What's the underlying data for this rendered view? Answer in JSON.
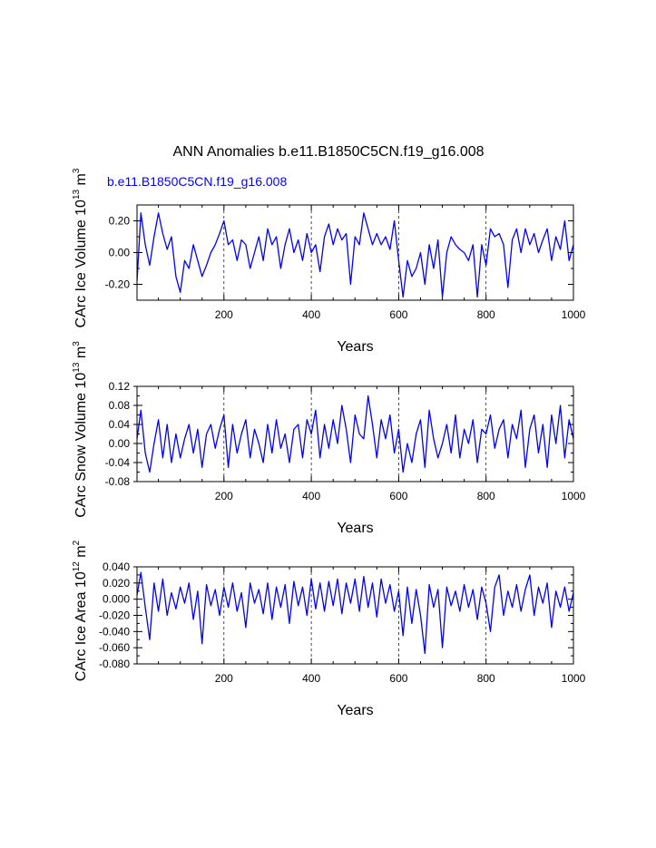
{
  "figure": {
    "title": "ANN Anomalies b.e11.B1850C5CN.f19_g16.008",
    "case_label": "b.e11.B1850C5CN.f19_g16.008",
    "line_color": "#0000ff",
    "grid_color": "#000000"
  },
  "chart_data": [
    {
      "type": "line",
      "name": "ice-volume",
      "ylabel": {
        "main": "CArc Ice Volume 10",
        "exp": "13",
        "unit": " m",
        "unit_exp": "3"
      },
      "xlabel": "Years",
      "xlim": [
        1,
        1000
      ],
      "ylim": [
        -0.3,
        0.3
      ],
      "xticks": [
        200,
        400,
        600,
        800,
        1000
      ],
      "xtick_labels": [
        "200",
        "400",
        "600",
        "800",
        "1000"
      ],
      "yticks": [
        -0.2,
        0.0,
        0.2
      ],
      "ytick_labels": [
        "-0.20",
        "0.00",
        "0.20"
      ],
      "grid_x": [
        200,
        400,
        600,
        800
      ],
      "series": [
        {
          "name": "b.e11.B1850C5CN.f19_g16.008",
          "x": [
            1,
            10,
            20,
            30,
            40,
            50,
            60,
            70,
            80,
            90,
            100,
            110,
            120,
            130,
            140,
            150,
            160,
            170,
            180,
            190,
            200,
            210,
            220,
            230,
            240,
            250,
            260,
            270,
            280,
            290,
            300,
            310,
            320,
            330,
            340,
            350,
            360,
            370,
            380,
            390,
            400,
            410,
            420,
            430,
            440,
            450,
            460,
            470,
            480,
            490,
            500,
            510,
            520,
            530,
            540,
            550,
            560,
            570,
            580,
            590,
            600,
            610,
            620,
            630,
            640,
            650,
            660,
            670,
            680,
            690,
            700,
            710,
            720,
            730,
            740,
            750,
            760,
            770,
            780,
            790,
            800,
            810,
            820,
            830,
            840,
            850,
            860,
            870,
            880,
            890,
            900,
            910,
            920,
            930,
            940,
            950,
            960,
            970,
            980,
            990,
            1000
          ],
          "y": [
            -0.18,
            0.25,
            0.05,
            -0.08,
            0.1,
            0.25,
            0.12,
            0.02,
            0.1,
            -0.15,
            -0.25,
            -0.05,
            -0.1,
            0.05,
            -0.05,
            -0.15,
            -0.08,
            0.0,
            0.05,
            0.12,
            0.2,
            0.05,
            0.08,
            -0.05,
            0.08,
            0.05,
            -0.1,
            0.0,
            0.1,
            -0.05,
            0.15,
            0.05,
            0.1,
            -0.1,
            0.05,
            0.15,
            0.0,
            0.08,
            -0.05,
            0.12,
            0.0,
            0.05,
            -0.12,
            0.1,
            0.18,
            0.05,
            0.15,
            0.08,
            0.12,
            -0.2,
            0.1,
            0.05,
            0.25,
            0.15,
            0.05,
            0.12,
            0.05,
            0.1,
            0.02,
            0.2,
            -0.05,
            -0.28,
            -0.05,
            -0.15,
            -0.1,
            0.0,
            -0.2,
            0.05,
            -0.1,
            0.08,
            -0.28,
            0.0,
            0.1,
            0.05,
            0.02,
            0.0,
            -0.05,
            0.05,
            -0.28,
            0.05,
            -0.08,
            0.15,
            0.1,
            0.12,
            0.05,
            -0.22,
            0.08,
            0.15,
            0.0,
            0.15,
            0.05,
            0.12,
            0.0,
            0.08,
            0.15,
            -0.05,
            0.1,
            0.02,
            0.2,
            -0.05,
            0.05
          ]
        }
      ]
    },
    {
      "type": "line",
      "name": "snow-volume",
      "ylabel": {
        "main": "CArc Snow Volume 10",
        "exp": "13",
        "unit": " m",
        "unit_exp": "3"
      },
      "xlabel": "Years",
      "xlim": [
        1,
        1000
      ],
      "ylim": [
        -0.08,
        0.12
      ],
      "xticks": [
        200,
        400,
        600,
        800,
        1000
      ],
      "xtick_labels": [
        "200",
        "400",
        "600",
        "800",
        "1000"
      ],
      "yticks": [
        -0.08,
        -0.04,
        0.0,
        0.04,
        0.08,
        0.12
      ],
      "ytick_labels": [
        "-0.08",
        "-0.04",
        "0.00",
        "0.04",
        "0.08",
        "0.12"
      ],
      "grid_x": [
        200,
        400,
        600,
        800
      ],
      "series": [
        {
          "name": "b.e11.B1850C5CN.f19_g16.008",
          "x": [
            1,
            10,
            20,
            30,
            40,
            50,
            60,
            70,
            80,
            90,
            100,
            110,
            120,
            130,
            140,
            150,
            160,
            170,
            180,
            190,
            200,
            210,
            220,
            230,
            240,
            250,
            260,
            270,
            280,
            290,
            300,
            310,
            320,
            330,
            340,
            350,
            360,
            370,
            380,
            390,
            400,
            410,
            420,
            430,
            440,
            450,
            460,
            470,
            480,
            490,
            500,
            510,
            520,
            530,
            540,
            550,
            560,
            570,
            580,
            590,
            600,
            610,
            620,
            630,
            640,
            650,
            660,
            670,
            680,
            690,
            700,
            710,
            720,
            730,
            740,
            750,
            760,
            770,
            780,
            790,
            800,
            810,
            820,
            830,
            840,
            850,
            860,
            870,
            880,
            890,
            900,
            910,
            920,
            930,
            940,
            950,
            960,
            970,
            980,
            990,
            1000
          ],
          "y": [
            0.01,
            0.07,
            -0.02,
            -0.06,
            0.0,
            0.05,
            -0.03,
            0.04,
            -0.04,
            0.02,
            -0.03,
            0.01,
            0.04,
            -0.02,
            0.03,
            -0.05,
            0.02,
            0.04,
            -0.01,
            0.03,
            0.06,
            -0.05,
            0.04,
            -0.02,
            0.02,
            0.05,
            -0.03,
            0.03,
            0.0,
            -0.04,
            0.04,
            -0.02,
            0.05,
            -0.01,
            0.02,
            -0.04,
            0.03,
            0.04,
            -0.03,
            0.05,
            0.02,
            0.07,
            -0.03,
            0.04,
            -0.01,
            0.05,
            0.0,
            0.08,
            0.03,
            -0.04,
            0.06,
            0.02,
            0.01,
            0.1,
            0.04,
            -0.03,
            0.05,
            0.01,
            0.06,
            -0.02,
            0.03,
            -0.06,
            0.0,
            -0.04,
            0.02,
            0.05,
            -0.05,
            0.07,
            0.01,
            -0.03,
            0.0,
            0.04,
            -0.02,
            0.06,
            -0.03,
            0.03,
            0.0,
            0.05,
            -0.04,
            0.03,
            0.02,
            0.06,
            -0.01,
            0.03,
            0.05,
            -0.03,
            0.04,
            0.01,
            0.07,
            -0.05,
            0.03,
            0.06,
            -0.02,
            0.04,
            -0.05,
            0.06,
            0.0,
            0.08,
            -0.03,
            0.05,
            0.01
          ]
        }
      ]
    },
    {
      "type": "line",
      "name": "ice-area",
      "ylabel": {
        "main": "CArc Ice Area 10",
        "exp": "12",
        "unit": " m",
        "unit_exp": "2"
      },
      "xlabel": "Years",
      "xlim": [
        1,
        1000
      ],
      "ylim": [
        -0.08,
        0.04
      ],
      "xticks": [
        200,
        400,
        600,
        800,
        1000
      ],
      "xtick_labels": [
        "200",
        "400",
        "600",
        "800",
        "1000"
      ],
      "yticks": [
        -0.08,
        -0.06,
        -0.04,
        -0.02,
        0.0,
        0.02,
        0.04
      ],
      "ytick_labels": [
        "-0.080",
        "-0.060",
        "-0.040",
        "-0.020",
        "0.000",
        "0.020",
        "0.040"
      ],
      "grid_x": [
        200,
        400,
        600,
        800
      ],
      "series": [
        {
          "name": "b.e11.B1850C5CN.f19_g16.008",
          "x": [
            1,
            10,
            20,
            30,
            40,
            50,
            60,
            70,
            80,
            90,
            100,
            110,
            120,
            130,
            140,
            150,
            160,
            170,
            180,
            190,
            200,
            210,
            220,
            230,
            240,
            250,
            260,
            270,
            280,
            290,
            300,
            310,
            320,
            330,
            340,
            350,
            360,
            370,
            380,
            390,
            400,
            410,
            420,
            430,
            440,
            450,
            460,
            470,
            480,
            490,
            500,
            510,
            520,
            530,
            540,
            550,
            560,
            570,
            580,
            590,
            600,
            610,
            620,
            630,
            640,
            650,
            660,
            670,
            680,
            690,
            700,
            710,
            720,
            730,
            740,
            750,
            760,
            770,
            780,
            790,
            800,
            810,
            820,
            830,
            840,
            850,
            860,
            870,
            880,
            890,
            900,
            910,
            920,
            930,
            940,
            950,
            960,
            970,
            980,
            990,
            1000
          ],
          "y": [
            0.005,
            0.033,
            -0.01,
            -0.05,
            0.02,
            -0.015,
            0.025,
            -0.02,
            0.008,
            -0.012,
            0.015,
            -0.005,
            0.02,
            -0.025,
            0.01,
            -0.055,
            0.018,
            -0.008,
            0.012,
            -0.02,
            0.015,
            -0.01,
            0.02,
            -0.015,
            0.008,
            -0.035,
            0.02,
            -0.005,
            0.012,
            -0.018,
            0.02,
            -0.025,
            0.015,
            -0.01,
            0.018,
            -0.03,
            0.022,
            -0.008,
            0.015,
            -0.02,
            0.025,
            -0.012,
            0.02,
            -0.015,
            0.022,
            -0.008,
            0.025,
            -0.018,
            0.02,
            -0.005,
            0.025,
            -0.015,
            0.028,
            -0.01,
            0.02,
            -0.022,
            0.025,
            -0.005,
            0.018,
            -0.015,
            0.01,
            -0.045,
            0.015,
            -0.03,
            0.012,
            -0.02,
            -0.067,
            0.018,
            -0.01,
            0.012,
            -0.06,
            0.015,
            -0.008,
            0.01,
            -0.015,
            0.018,
            -0.01,
            0.012,
            -0.025,
            0.015,
            -0.005,
            -0.04,
            0.015,
            0.03,
            -0.02,
            0.01,
            -0.01,
            0.018,
            -0.015,
            0.012,
            0.03,
            -0.02,
            0.015,
            -0.005,
            0.02,
            -0.035,
            0.01,
            -0.01,
            0.015,
            -0.015,
            0.008
          ]
        }
      ]
    }
  ]
}
